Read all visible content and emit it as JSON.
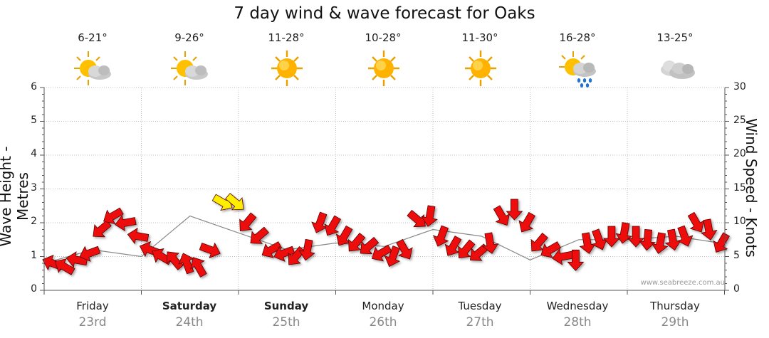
{
  "chart_data": {
    "type": "line",
    "title": "7 day wind & wave forecast for Oaks",
    "ylabel_left": "Wave Height - Metres",
    "ylabel_right": "Wind Speed - Knots",
    "ylim_left": [
      0,
      6
    ],
    "ylim_right": [
      0,
      30
    ],
    "yticks_left": [
      "0",
      "1",
      "2",
      "3",
      "4",
      "5",
      "6"
    ],
    "yticks_right": [
      "0",
      "5",
      "10",
      "15",
      "20",
      "25",
      "30"
    ],
    "grid": true,
    "credit": "www.seabreeze.com.au",
    "days": [
      {
        "name": "Friday",
        "date": "23rd",
        "temp": "6-21°",
        "icon": "partly-cloudy-icon",
        "bold": false
      },
      {
        "name": "Saturday",
        "date": "24th",
        "temp": "9-26°",
        "icon": "partly-cloudy-icon",
        "bold": true
      },
      {
        "name": "Sunday",
        "date": "25th",
        "temp": "11-28°",
        "icon": "sun-icon",
        "bold": true
      },
      {
        "name": "Monday",
        "date": "26th",
        "temp": "10-28°",
        "icon": "sun-icon",
        "bold": false
      },
      {
        "name": "Tuesday",
        "date": "27th",
        "temp": "11-30°",
        "icon": "sun-icon",
        "bold": false
      },
      {
        "name": "Wednesday",
        "date": "28th",
        "temp": "16-28°",
        "icon": "showers-icon",
        "bold": false
      },
      {
        "name": "Thursday",
        "date": "29th",
        "temp": "13-25°",
        "icon": "cloudy-icon",
        "bold": false
      }
    ],
    "wind_series": {
      "name": "Wind speed (knots)",
      "day_offset": [
        0.0,
        0.12,
        0.25,
        0.38,
        0.5,
        0.62,
        0.75,
        0.88
      ],
      "values": [
        [
          4,
          3.5,
          4.5,
          5.5,
          9,
          11,
          10,
          8
        ],
        [
          6,
          5,
          4.5,
          4,
          3.5,
          6,
          13,
          13
        ],
        [
          10,
          8,
          6,
          5.5,
          5,
          6,
          10,
          9.5
        ],
        [
          8,
          7,
          6.5,
          5.5,
          5,
          6,
          10.5,
          11
        ],
        [
          8,
          6.5,
          6,
          5.5,
          7,
          11,
          12,
          10
        ],
        [
          7,
          6,
          5,
          4.5,
          7,
          7.5,
          8,
          8.5
        ],
        [
          8,
          7.5,
          7,
          7.5,
          8,
          10,
          9,
          7
        ]
      ],
      "direction_deg": [
        [
          200,
          210,
          190,
          160,
          140,
          150,
          170,
          190
        ],
        [
          200,
          210,
          230,
          250,
          240,
          20,
          30,
          40
        ],
        [
          130,
          140,
          150,
          160,
          130,
          100,
          110,
          120
        ],
        [
          120,
          130,
          140,
          150,
          110,
          60,
          40,
          100
        ],
        [
          110,
          120,
          130,
          140,
          80,
          60,
          90,
          120
        ],
        [
          130,
          150,
          170,
          90,
          80,
          70,
          90,
          100
        ],
        [
          90,
          95,
          100,
          80,
          70,
          60,
          80,
          120
        ]
      ],
      "highlight": [
        [
          1,
          6
        ],
        [
          1,
          7
        ]
      ],
      "arrow_color": "#ee1111",
      "highlight_color": "#ffee00"
    },
    "wave_series": {
      "name": "Wave height (metres)",
      "x_day": [
        0.0,
        0.5,
        1.0,
        1.5,
        2.0,
        2.5,
        3.0,
        3.5,
        4.0,
        4.5,
        5.0,
        5.5,
        6.0,
        6.5,
        6.95
      ],
      "values": [
        0.8,
        1.2,
        1.0,
        2.2,
        1.7,
        1.2,
        1.4,
        1.3,
        1.8,
        1.6,
        0.9,
        1.5,
        1.5,
        1.6,
        1.4
      ],
      "color": "#888888"
    }
  }
}
